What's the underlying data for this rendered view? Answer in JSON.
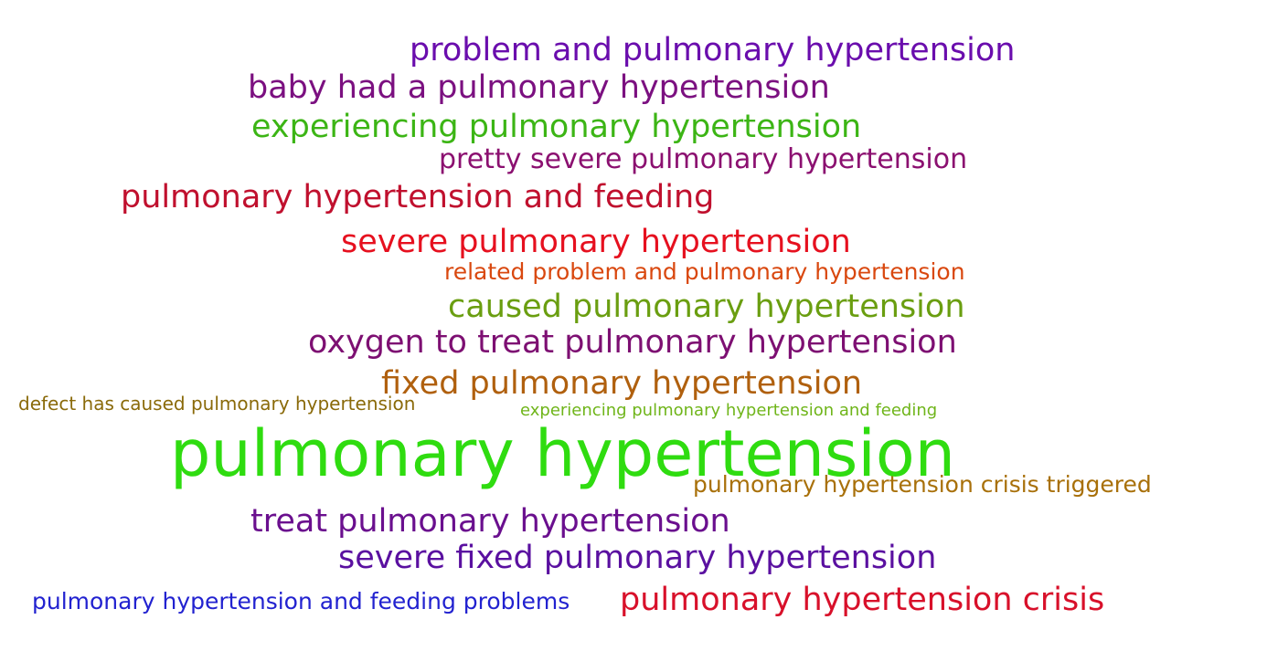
{
  "phrases": [
    {
      "text": "problem and pulmonary hypertension",
      "color": "#6a0dad"
    },
    {
      "text": "baby had a pulmonary hypertension",
      "color": "#7b1080"
    },
    {
      "text": "experiencing pulmonary hypertension",
      "color": "#3cb515"
    },
    {
      "text": "pretty severe pulmonary hypertension",
      "color": "#8b1070"
    },
    {
      "text": "pulmonary hypertension and feeding",
      "color": "#c0102e"
    },
    {
      "text": "severe pulmonary hypertension",
      "color": "#e6101f"
    },
    {
      "text": "related problem and pulmonary hypertension",
      "color": "#d9480f"
    },
    {
      "text": "caused pulmonary hypertension",
      "color": "#6a9e10"
    },
    {
      "text": "oxygen to treat pulmonary hypertension",
      "color": "#7d0f72"
    },
    {
      "text": "fixed pulmonary hypertension",
      "color": "#b0600e"
    },
    {
      "text": "defect has caused pulmonary hypertension",
      "color": "#8a6a0a"
    },
    {
      "text": "experiencing pulmonary hypertension and feeding",
      "color": "#6fb51a"
    },
    {
      "text": "pulmonary hypertension",
      "color": "#2fdc10"
    },
    {
      "text": "pulmonary hypertension crisis triggered",
      "color": "#a8700a"
    },
    {
      "text": "treat pulmonary hypertension",
      "color": "#6a0f8e"
    },
    {
      "text": "severe fixed pulmonary hypertension",
      "color": "#5a10a0"
    },
    {
      "text": "pulmonary hypertension and feeding problems",
      "color": "#2222d0"
    },
    {
      "text": "pulmonary hypertension crisis",
      "color": "#d8102a"
    }
  ]
}
